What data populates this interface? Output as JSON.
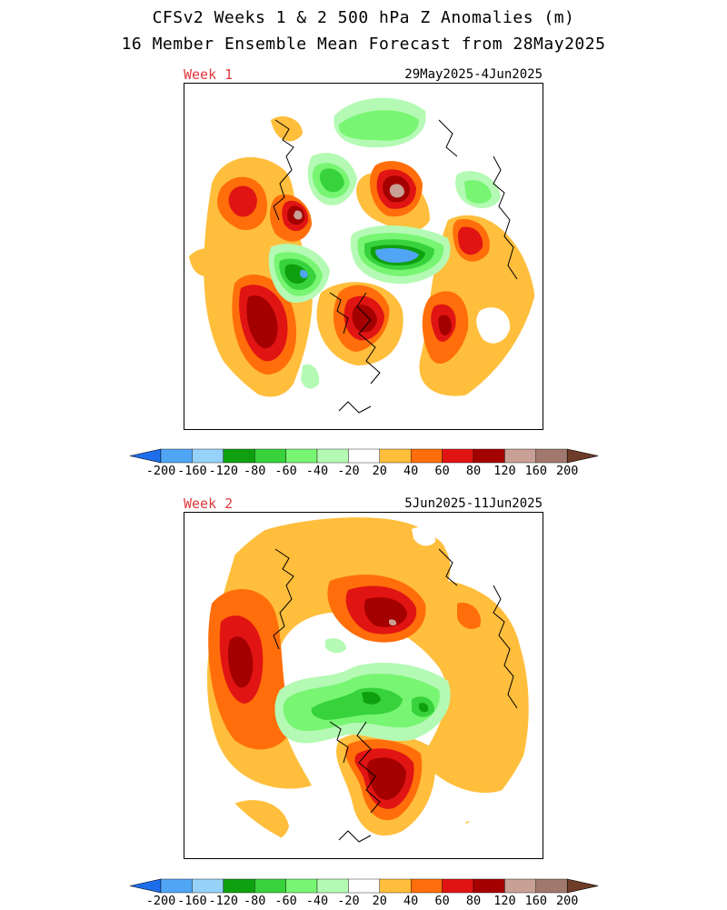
{
  "header": {
    "title_line1": "CFSv2 Weeks 1 & 2 500 hPa Z Anomalies (m)",
    "title_line2": "16 Member Ensemble Mean Forecast from 28May2025"
  },
  "panels": [
    {
      "label": "Week 1",
      "dates": "29May2025-4Jun2025"
    },
    {
      "label": "Week 2",
      "dates": "5Jun2025-11Jun2025"
    }
  ],
  "colorbar": {
    "ticks": [
      "-200",
      "-160",
      "-120",
      "-80",
      "-60",
      "-40",
      "-20",
      "20",
      "40",
      "60",
      "80",
      "120",
      "160",
      "200"
    ],
    "colors": [
      "#1e6eeb",
      "#50a5f5",
      "#96d2fa",
      "#0fa00f",
      "#37d23c",
      "#78f573",
      "#b4fab4",
      "#ffffff",
      "#ffbe3c",
      "#ff6e0a",
      "#e11414",
      "#a50000",
      "#c8a096",
      "#a0786e",
      "#6e3c28"
    ]
  }
}
